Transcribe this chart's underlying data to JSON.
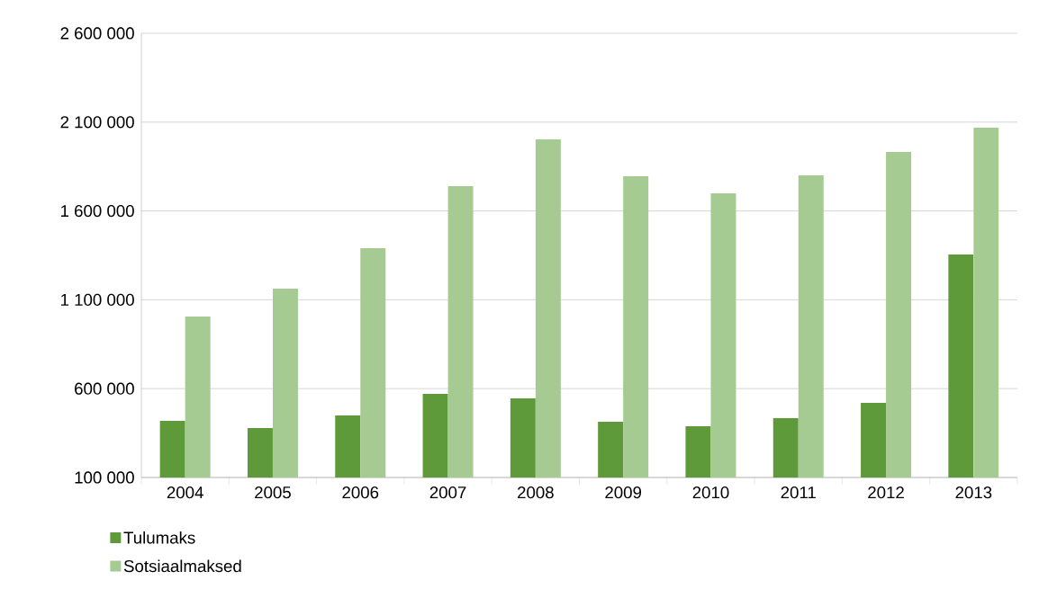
{
  "chart_data": {
    "type": "bar",
    "categories": [
      "2004",
      "2005",
      "2006",
      "2007",
      "2008",
      "2009",
      "2010",
      "2011",
      "2012",
      "2013"
    ],
    "series": [
      {
        "name": "Tulumaks",
        "color": "#5f9a3a",
        "values": [
          419000,
          378000,
          449000,
          571000,
          545000,
          414000,
          388000,
          434000,
          520000,
          1355000
        ]
      },
      {
        "name": "Sotsiaalmaksed",
        "color": "#a6cb92",
        "values": [
          1006000,
          1163000,
          1390000,
          1740000,
          2003000,
          1795000,
          1699000,
          1800000,
          1932000,
          2069000
        ]
      }
    ],
    "ylim": [
      100000,
      2600000
    ],
    "yticks": [
      {
        "value": 100000,
        "label": "100 000"
      },
      {
        "value": 600000,
        "label": "600 000"
      },
      {
        "value": 1100000,
        "label": "1 100 000"
      },
      {
        "value": 1600000,
        "label": "1 600 000"
      },
      {
        "value": 2100000,
        "label": "2 100 000"
      },
      {
        "value": 2600000,
        "label": "2 600 000"
      }
    ],
    "grid": "y",
    "legend": "bottom left"
  }
}
